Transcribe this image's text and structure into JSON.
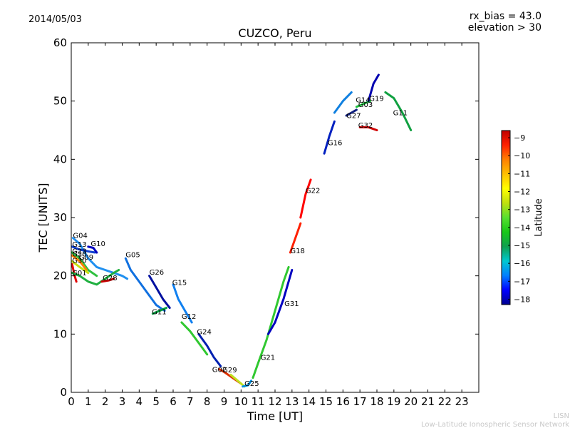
{
  "header": {
    "date": "2014/05/03",
    "title": "CUZCO, Peru",
    "rx_bias": "rx_bias = 43.0",
    "elevation": "elevation > 30"
  },
  "footer": {
    "line1": "LISN",
    "line2": "Low-Latitude Ionospheric Sensor Network"
  },
  "colorbar": {
    "label": "Latitude",
    "range": [
      -18.3,
      -8.6
    ],
    "ticks": [
      -9,
      -10,
      -11,
      -12,
      -13,
      -14,
      -15,
      -16,
      -17,
      -18
    ],
    "colors": [
      "#00008f",
      "#0000ff",
      "#0080ff",
      "#00c8d0",
      "#10a050",
      "#18c818",
      "#58e030",
      "#c0e010",
      "#ffff00",
      "#ffc000",
      "#ff8000",
      "#ff2000",
      "#c00000"
    ]
  },
  "chart_data": {
    "type": "scatter",
    "title": "CUZCO, Peru",
    "xlabel": "Time [UT]",
    "ylabel": "TEC [UNITS]",
    "xlim": [
      0,
      24
    ],
    "ylim": [
      0,
      60
    ],
    "x_ticks": [
      0,
      1,
      2,
      3,
      4,
      5,
      6,
      7,
      8,
      9,
      10,
      11,
      12,
      13,
      14,
      15,
      16,
      17,
      18,
      19,
      20,
      21,
      22,
      23
    ],
    "y_ticks": [
      0,
      10,
      20,
      30,
      40,
      50,
      60
    ],
    "color_scale": "Latitude",
    "series": [
      {
        "name": "G04",
        "color": "#2090f0",
        "points": [
          [
            0.1,
            26.5
          ],
          [
            0.5,
            25.5
          ],
          [
            1.0,
            23.0
          ],
          [
            1.5,
            21.5
          ],
          [
            2.0,
            21.0
          ],
          [
            2.5,
            20.5
          ],
          [
            3.0,
            20.0
          ],
          [
            3.3,
            19.5
          ]
        ]
      },
      {
        "name": "G13",
        "color": "#1040d0",
        "points": [
          [
            0.05,
            25.0
          ],
          [
            0.5,
            24.5
          ],
          [
            1.0,
            24.2
          ],
          [
            1.4,
            24.0
          ]
        ]
      },
      {
        "name": "G10",
        "color": "#0000c0",
        "points": [
          [
            1.0,
            25.0
          ],
          [
            1.3,
            24.8
          ],
          [
            1.5,
            24.0
          ]
        ]
      },
      {
        "name": "G23",
        "color": "#30c040",
        "points": [
          [
            0.05,
            24.0
          ],
          [
            0.5,
            23.0
          ],
          [
            1.0,
            21.0
          ],
          [
            1.5,
            20.0
          ]
        ]
      },
      {
        "name": "G20",
        "color": "#ff8000",
        "points": [
          [
            0.05,
            23.5
          ],
          [
            0.5,
            22.5
          ],
          [
            0.9,
            21.0
          ]
        ]
      },
      {
        "name": "G09",
        "color": "#c8e010",
        "points": [
          [
            0.05,
            22.5
          ],
          [
            0.5,
            21.5
          ],
          [
            1.0,
            20.5
          ]
        ]
      },
      {
        "name": "G30",
        "color": "#e00000",
        "points": [
          [
            0.05,
            22.0
          ],
          [
            0.2,
            20.0
          ],
          [
            0.3,
            19.0
          ]
        ]
      },
      {
        "name": "G01",
        "color": "#20b040",
        "points": [
          [
            0.05,
            20.5
          ],
          [
            0.5,
            20.0
          ],
          [
            1.0,
            19.0
          ],
          [
            1.5,
            18.5
          ],
          [
            2.0,
            19.5
          ],
          [
            2.5,
            20.5
          ],
          [
            2.8,
            21.0
          ]
        ]
      },
      {
        "name": "G28",
        "color": "#c80000",
        "points": [
          [
            1.8,
            19.0
          ],
          [
            2.2,
            19.2
          ],
          [
            2.5,
            19.5
          ]
        ]
      },
      {
        "name": "G05",
        "color": "#1070e0",
        "points": [
          [
            3.2,
            23.0
          ],
          [
            3.5,
            21.0
          ],
          [
            4.0,
            19.0
          ],
          [
            4.5,
            17.0
          ],
          [
            5.0,
            15.0
          ],
          [
            5.5,
            14.0
          ]
        ]
      },
      {
        "name": "G26",
        "color": "#0010a0",
        "points": [
          [
            4.6,
            20.0
          ],
          [
            5.0,
            18.0
          ],
          [
            5.4,
            16.0
          ],
          [
            5.8,
            14.5
          ]
        ]
      },
      {
        "name": "G11",
        "color": "#00a040",
        "points": [
          [
            4.8,
            13.5
          ],
          [
            5.2,
            14.0
          ],
          [
            5.6,
            14.5
          ]
        ]
      },
      {
        "name": "G15",
        "color": "#1080f0",
        "points": [
          [
            6.0,
            18.5
          ],
          [
            6.3,
            16.0
          ],
          [
            6.7,
            14.0
          ],
          [
            7.1,
            12.0
          ]
        ]
      },
      {
        "name": "G12",
        "color": "#30c830",
        "points": [
          [
            6.5,
            12.0
          ],
          [
            7.0,
            10.5
          ],
          [
            7.5,
            8.5
          ],
          [
            8.0,
            6.5
          ]
        ]
      },
      {
        "name": "G24",
        "color": "#0020b0",
        "points": [
          [
            7.5,
            10.0
          ],
          [
            8.0,
            8.0
          ],
          [
            8.4,
            6.0
          ],
          [
            8.8,
            4.5
          ]
        ]
      },
      {
        "name": "G02",
        "color": "#e03000",
        "points": [
          [
            8.7,
            4.0
          ],
          [
            9.0,
            3.5
          ],
          [
            9.5,
            2.5
          ],
          [
            10.0,
            1.5
          ]
        ]
      },
      {
        "name": "G29",
        "color": "#c0e020",
        "points": [
          [
            9.4,
            3.0
          ],
          [
            9.8,
            2.0
          ],
          [
            10.2,
            1.0
          ]
        ]
      },
      {
        "name": "G25",
        "color": "#0090e0",
        "points": [
          [
            10.1,
            1.0
          ],
          [
            10.4,
            1.2
          ],
          [
            10.6,
            2.0
          ]
        ]
      },
      {
        "name": "G21",
        "color": "#30c830",
        "points": [
          [
            10.7,
            2.5
          ],
          [
            11.0,
            5.0
          ],
          [
            11.5,
            9.0
          ],
          [
            12.0,
            14.0
          ],
          [
            12.5,
            19.0
          ],
          [
            12.8,
            21.5
          ]
        ]
      },
      {
        "name": "G31",
        "color": "#0000c0",
        "points": [
          [
            11.6,
            10.0
          ],
          [
            12.0,
            12.0
          ],
          [
            12.5,
            16.0
          ],
          [
            13.0,
            21.0
          ]
        ]
      },
      {
        "name": "G18",
        "color": "#ff2000",
        "points": [
          [
            12.9,
            24.0
          ],
          [
            13.2,
            26.5
          ],
          [
            13.5,
            29.0
          ]
        ]
      },
      {
        "name": "G22",
        "color": "#ff0000",
        "points": [
          [
            13.5,
            30.0
          ],
          [
            13.8,
            34.0
          ],
          [
            14.1,
            36.5
          ]
        ]
      },
      {
        "name": "G16",
        "color": "#0020c0",
        "points": [
          [
            14.9,
            41.0
          ],
          [
            15.2,
            44.0
          ],
          [
            15.5,
            46.5
          ]
        ]
      },
      {
        "name": "G27",
        "color": "#102080",
        "points": [
          [
            16.2,
            47.5
          ],
          [
            16.5,
            48.0
          ],
          [
            16.8,
            48.5
          ]
        ]
      },
      {
        "name": "G14",
        "color": "#1080e0",
        "points": [
          [
            15.5,
            48.0
          ],
          [
            16.0,
            50.0
          ],
          [
            16.5,
            51.5
          ]
        ]
      },
      {
        "name": "G03",
        "color": "#20c040",
        "points": [
          [
            16.8,
            49.0
          ],
          [
            17.2,
            49.5
          ],
          [
            17.6,
            50.0
          ]
        ]
      },
      {
        "name": "G19",
        "color": "#0000b0",
        "points": [
          [
            17.5,
            50.0
          ],
          [
            17.8,
            53.0
          ],
          [
            18.1,
            54.5
          ]
        ]
      },
      {
        "name": "G32",
        "color": "#d00000",
        "points": [
          [
            17.0,
            45.5
          ],
          [
            17.5,
            45.5
          ],
          [
            18.0,
            45.0
          ]
        ]
      },
      {
        "name": "G11",
        "color": "#10a040",
        "points": [
          [
            18.5,
            51.5
          ],
          [
            19.0,
            50.5
          ],
          [
            19.5,
            48.0
          ],
          [
            20.0,
            45.0
          ]
        ]
      }
    ],
    "labels": [
      {
        "text": "G04",
        "x": 0.1,
        "y": 26.5
      },
      {
        "text": "G13",
        "x": 0.05,
        "y": 25.0
      },
      {
        "text": "G10",
        "x": 1.15,
        "y": 25.1
      },
      {
        "text": "G23",
        "x": 0.05,
        "y": 23.8
      },
      {
        "text": "G20",
        "x": 0.05,
        "y": 23.3
      },
      {
        "text": "G09",
        "x": 0.45,
        "y": 22.8
      },
      {
        "text": "G30",
        "x": 0.05,
        "y": 22.2
      },
      {
        "text": "G01",
        "x": 0.05,
        "y": 20.1
      },
      {
        "text": "G28",
        "x": 1.85,
        "y": 19.2
      },
      {
        "text": "G05",
        "x": 3.2,
        "y": 23.2
      },
      {
        "text": "G26",
        "x": 4.6,
        "y": 20.2
      },
      {
        "text": "G11",
        "x": 4.75,
        "y": 13.4
      },
      {
        "text": "G15",
        "x": 5.95,
        "y": 18.4
      },
      {
        "text": "G12",
        "x": 6.5,
        "y": 12.6
      },
      {
        "text": "G24",
        "x": 7.4,
        "y": 10.0
      },
      {
        "text": "G02",
        "x": 8.3,
        "y": 3.5
      },
      {
        "text": "G29",
        "x": 8.9,
        "y": 3.4
      },
      {
        "text": "G25",
        "x": 10.2,
        "y": 1.1
      },
      {
        "text": "G21",
        "x": 11.15,
        "y": 5.6
      },
      {
        "text": "G31",
        "x": 12.55,
        "y": 14.8
      },
      {
        "text": "G18",
        "x": 12.9,
        "y": 23.9
      },
      {
        "text": "G22",
        "x": 13.8,
        "y": 34.2
      },
      {
        "text": "G16",
        "x": 15.1,
        "y": 42.4
      },
      {
        "text": "G14",
        "x": 16.75,
        "y": 49.8
      },
      {
        "text": "G03",
        "x": 16.9,
        "y": 49.0
      },
      {
        "text": "G19",
        "x": 17.55,
        "y": 50.0
      },
      {
        "text": "G27",
        "x": 16.2,
        "y": 47.1
      },
      {
        "text": "G32",
        "x": 16.9,
        "y": 45.4
      },
      {
        "text": "G11",
        "x": 18.95,
        "y": 47.6
      }
    ]
  }
}
